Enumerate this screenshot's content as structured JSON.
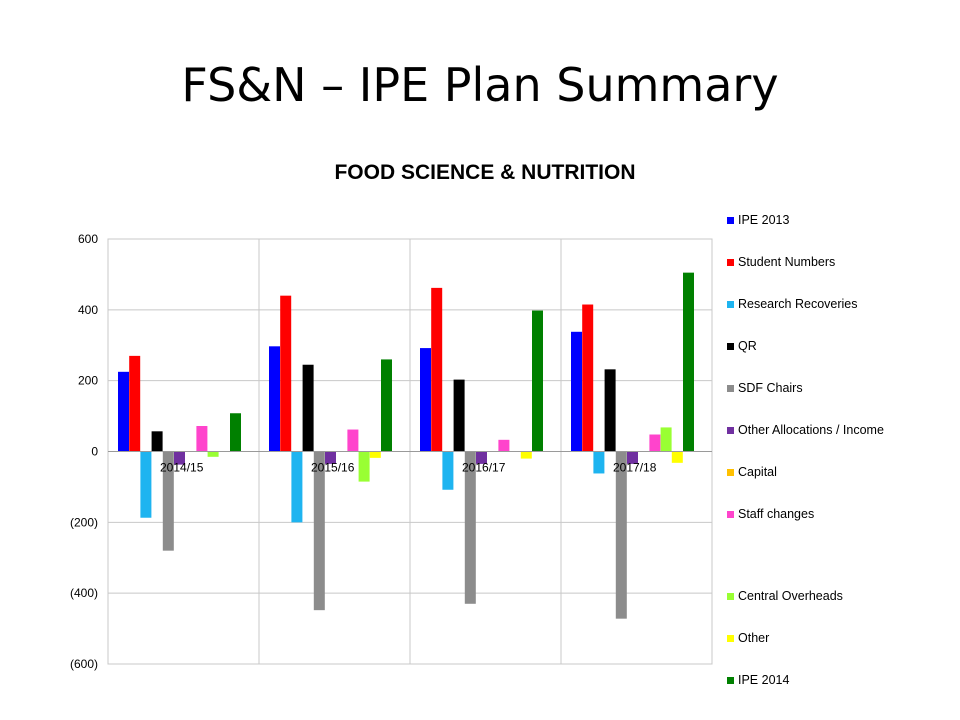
{
  "slide": {
    "title": "FS&N – IPE Plan Summary"
  },
  "chart_data": {
    "type": "bar",
    "title": "FOOD  SCIENCE & NUTRITION",
    "xlabel": "",
    "ylabel": "",
    "ylim": [
      -600,
      600
    ],
    "yticks": [
      600,
      400,
      200,
      0,
      -200,
      -400,
      -600
    ],
    "ytick_labels": [
      "600",
      "400",
      "200",
      "0",
      "(200)",
      "(400)",
      "(600)"
    ],
    "grid": true,
    "legend_position": "right",
    "categories": [
      "2014/15",
      "2015/16",
      "2016/17",
      "2017/18"
    ],
    "series": [
      {
        "name": "IPE 2013",
        "color": "#0000ff",
        "values": [
          225,
          297,
          292,
          338
        ]
      },
      {
        "name": "Student Numbers",
        "color": "#ff0000",
        "values": [
          270,
          440,
          462,
          415
        ]
      },
      {
        "name": "Research Recoveries",
        "color": "#1eb4f0",
        "values": [
          -187,
          -200,
          -108,
          -62
        ]
      },
      {
        "name": "QR",
        "color": "#000000",
        "values": [
          57,
          245,
          203,
          232
        ]
      },
      {
        "name": "SDF Chairs",
        "color": "#8c8c8c",
        "values": [
          -280,
          -448,
          -430,
          -472
        ]
      },
      {
        "name": "Other Allocations / Income",
        "color": "#7030a0",
        "values": [
          -37,
          -35,
          -35,
          -35
        ]
      },
      {
        "name": "Capital",
        "color": "#ffc000",
        "values": [
          0,
          0,
          0,
          0
        ]
      },
      {
        "name": "Staff changes",
        "color": "#ff44cc",
        "values": [
          72,
          62,
          33,
          48
        ]
      },
      {
        "name": "Central Overheads",
        "color": "#99ff33",
        "values": [
          -15,
          -85,
          0,
          68
        ]
      },
      {
        "name": "Other",
        "color": "#ffff00",
        "values": [
          0,
          -18,
          -20,
          -32
        ]
      },
      {
        "name": "IPE 2014",
        "color": "#008000",
        "values": [
          108,
          260,
          398,
          505
        ]
      }
    ]
  }
}
